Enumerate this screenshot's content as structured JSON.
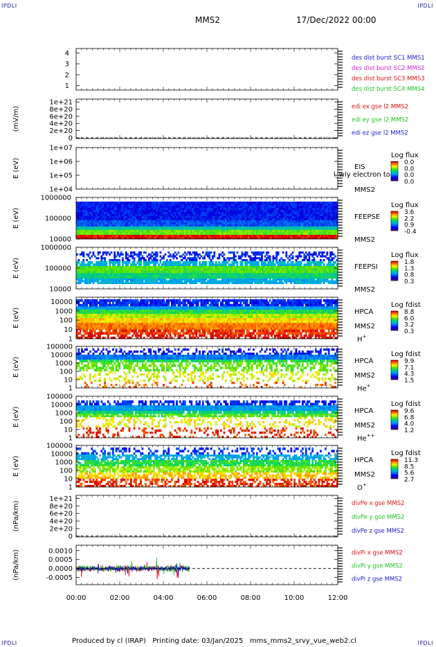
{
  "corners": {
    "tl": "IPDLI",
    "tr": "IPDLI",
    "bl": "IPDLI",
    "br": "IPDLI"
  },
  "header": {
    "spacecraft": "MMS2",
    "date": "17/Dec/2022 00:00"
  },
  "footer": {
    "text": "Produced by cl (IRAP)   Printing date: 03/Jan/2025   mms_mms2_srvy_vue_web2.cl"
  },
  "colors": {
    "blue": "#1a1acc",
    "magenta": "#d020d0",
    "red": "#dd1010",
    "green": "#20c020",
    "frame": "#000000"
  },
  "chart_data": {
    "type": "multi-panel time series",
    "time_axis": {
      "ticks": [
        "00:00",
        "02:00",
        "04:00",
        "06:00",
        "08:00",
        "10:00",
        "12:00"
      ],
      "range_hours": [
        0,
        12
      ]
    },
    "panels": [
      {
        "id": "burst",
        "ylabel": "",
        "yticks": [
          "4",
          "3",
          "2",
          "1"
        ],
        "yvals": [
          4,
          3,
          2,
          1
        ],
        "ylim": [
          0.6,
          4.4
        ],
        "legend": [
          {
            "text": "des dist burst SC1 MMS1",
            "color": "blue"
          },
          {
            "text": "des dist burst SC2 MMS2",
            "color": "magenta"
          },
          {
            "text": "des dist burst SC3 MMS3",
            "color": "red"
          },
          {
            "text": "des dist burst SC4 MMS4",
            "color": "green"
          }
        ]
      },
      {
        "id": "edi",
        "ylabel": "(mV/m)",
        "yticks": [
          "1e+21",
          "8e+20",
          "6e+20",
          "4e+20",
          "2e+20",
          "0"
        ],
        "yvals": [
          1e+21,
          8e+20,
          6e+20,
          4e+20,
          2e+20,
          0
        ],
        "ylim": [
          -2e+19,
          1.08e+21
        ],
        "zero_line": true,
        "legend": [
          {
            "text": "edi ex gse l2 MMS2",
            "color": "red"
          },
          {
            "text": "edi ey gse l2 MMS2",
            "color": "green"
          },
          {
            "text": "edi ez gse l2 MMS2",
            "color": "blue"
          }
        ]
      },
      {
        "id": "eis",
        "ylabel": "E (eV)",
        "scale": "log",
        "yticks": [
          "1e+07",
          "1e+06",
          "1e+05",
          "1e+04"
        ],
        "ylim": [
          10000,
          10000000
        ],
        "instrument": [
          "EIS",
          "MMS2"
        ],
        "overlay_label": "l_wiy electron to",
        "colorbar": {
          "title": "Log flux",
          "ticks": [
            "0.0",
            "0.0",
            "0.0",
            "0.0"
          ]
        }
      },
      {
        "id": "feepse",
        "ylabel": "E (eV)",
        "scale": "log",
        "yticks": [
          "1000000",
          "100000",
          "10000"
        ],
        "ylim": [
          10000,
          1000000
        ],
        "instrument": [
          "FEEPSE",
          "MMS2"
        ],
        "colorbar": {
          "title": "Log flux",
          "ticks": [
            "3.6",
            "2.2",
            "0.9",
            "-0.4"
          ]
        }
      },
      {
        "id": "feepsi",
        "ylabel": "E (eV)",
        "scale": "log",
        "yticks": [
          "1000000",
          "100000",
          "10000"
        ],
        "ylim": [
          10000,
          1000000
        ],
        "instrument": [
          "FEEPSI",
          "MMS2"
        ],
        "colorbar": {
          "title": "Log flux",
          "ticks": [
            "1.8",
            "1.3",
            "0.8",
            "0.3"
          ]
        }
      },
      {
        "id": "hpca_h",
        "ylabel": "E (eV)",
        "scale": "log",
        "yticks": [
          "10000",
          "1000",
          "100",
          "10",
          "1"
        ],
        "ylim": [
          1,
          30000
        ],
        "instrument": [
          "HPCA",
          "MMS2"
        ],
        "species": "H",
        "charge": "+",
        "colorbar": {
          "title": "Log fdist",
          "ticks": [
            "8.8",
            "6.0",
            "3.2",
            "0.3"
          ]
        }
      },
      {
        "id": "hpca_he",
        "ylabel": "E (eV)",
        "scale": "log",
        "yticks": [
          "100000",
          "10000",
          "1000",
          "100",
          "10",
          "1"
        ],
        "ylim": [
          1,
          100000
        ],
        "instrument": [
          "HPCA",
          "MMS2"
        ],
        "species": "He",
        "charge": "+",
        "colorbar": {
          "title": "Log fdist",
          "ticks": [
            "9.9",
            "7.1",
            "4.3",
            "1.5"
          ]
        }
      },
      {
        "id": "hpca_hepp",
        "ylabel": "E (eV)",
        "scale": "log",
        "yticks": [
          "100000",
          "10000",
          "1000",
          "100",
          "10",
          "1"
        ],
        "ylim": [
          1,
          100000
        ],
        "instrument": [
          "HPCA",
          "MMS2"
        ],
        "species": "He",
        "charge": "++",
        "colorbar": {
          "title": "Log fdist",
          "ticks": [
            "9.6",
            "6.8",
            "4.0",
            "1.2"
          ]
        }
      },
      {
        "id": "hpca_o",
        "ylabel": "E (eV)",
        "scale": "log",
        "yticks": [
          "100000",
          "10000",
          "1000",
          "100",
          "10",
          "1"
        ],
        "ylim": [
          1,
          100000
        ],
        "instrument": [
          "HPCA",
          "MMS2"
        ],
        "species": "O",
        "charge": "+",
        "colorbar": {
          "title": "Log fdist",
          "ticks": [
            "11.3",
            "8.5",
            "5.6",
            "2.7"
          ]
        }
      },
      {
        "id": "divpe",
        "ylabel": "(nPa/km)",
        "yticks": [
          "1e+21",
          "8e+20",
          "6e+20",
          "4e+20",
          "2e+20",
          "0"
        ],
        "yvals": [
          1e+21,
          8e+20,
          6e+20,
          4e+20,
          2e+20,
          0
        ],
        "ylim": [
          -2e+19,
          1.08e+21
        ],
        "zero_line": true,
        "legend": [
          {
            "text": "divPe x gse MMS2",
            "color": "red"
          },
          {
            "text": "divPe y gse MMS2",
            "color": "green"
          },
          {
            "text": "divPe z gse MMS2",
            "color": "blue"
          }
        ]
      },
      {
        "id": "divpi",
        "ylabel": "(nPa/km)",
        "yticks": [
          "0.0010",
          "0.0005",
          "0.0000",
          "-0.0005"
        ],
        "yvals": [
          0.001,
          0.0005,
          0,
          -0.0005
        ],
        "ylim": [
          -0.0009,
          0.0013
        ],
        "zero_line": true,
        "data_end_hours": 5.2,
        "legend": [
          {
            "text": "divPi x gse MMS2",
            "color": "red"
          },
          {
            "text": "divPi y gse MMS2",
            "color": "green"
          },
          {
            "text": "divPi z gse MMS2",
            "color": "blue"
          }
        ]
      }
    ]
  }
}
